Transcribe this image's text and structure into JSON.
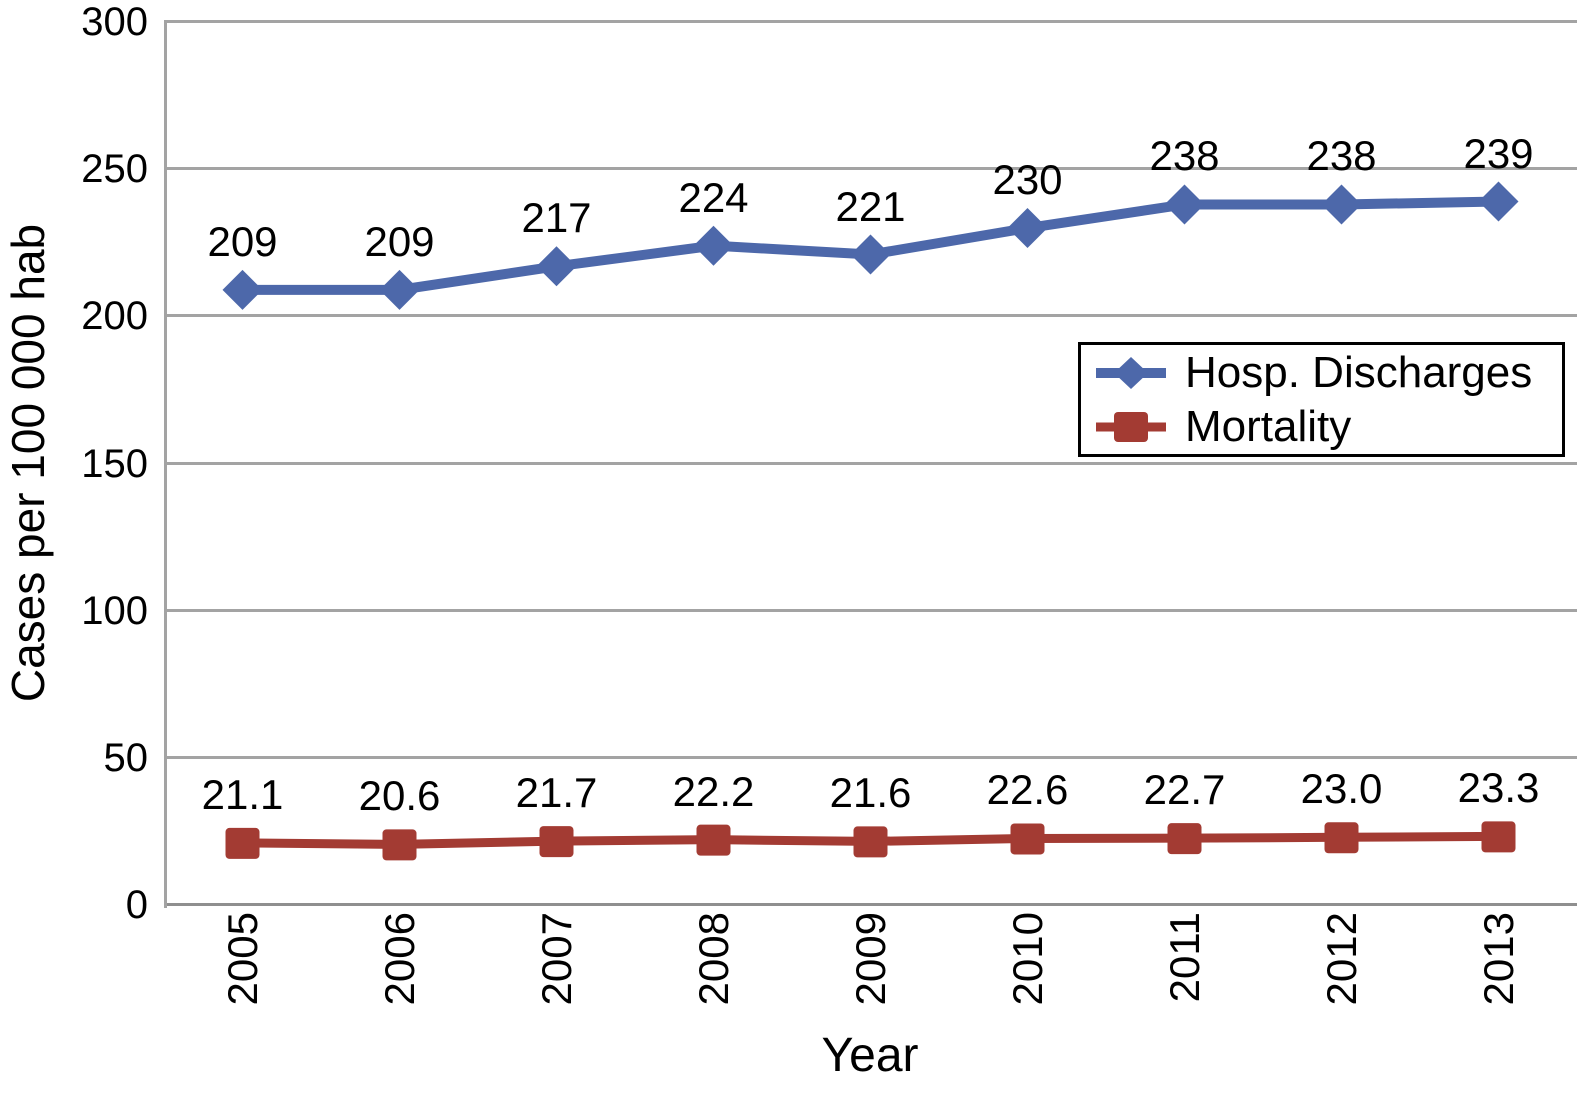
{
  "chart_data": {
    "type": "line",
    "title": "",
    "xlabel": "Year",
    "ylabel": "Cases per 100 000 hab",
    "x": [
      "2005",
      "2006",
      "2007",
      "2008",
      "2009",
      "2010",
      "2011",
      "2012",
      "2013"
    ],
    "ylim": [
      0,
      300
    ],
    "yticks": [
      0,
      50,
      100,
      150,
      200,
      250,
      300
    ],
    "grid": true,
    "legend_position": "middle-right",
    "series": [
      {
        "name": "Hosp. Discharges",
        "marker": "diamond",
        "color": "#4d68aa",
        "values": [
          209,
          209,
          217,
          224,
          221,
          230,
          238,
          238,
          239
        ],
        "labels": [
          "209",
          "209",
          "217",
          "224",
          "221",
          "230",
          "238",
          "238",
          "239"
        ]
      },
      {
        "name": "Mortality",
        "marker": "square",
        "color": "#a33b33",
        "values": [
          21.1,
          20.6,
          21.7,
          22.2,
          21.6,
          22.6,
          22.7,
          23.0,
          23.3
        ],
        "labels": [
          "21.1",
          "20.6",
          "21.7",
          "22.2",
          "21.6",
          "22.6",
          "22.7",
          "23.0",
          "23.3"
        ]
      }
    ],
    "colors": {
      "gridline": "#a3a3a3",
      "axis": "#8f8f8f",
      "text": "#000000",
      "background": "#ffffff",
      "legend_border": "#000000"
    }
  }
}
